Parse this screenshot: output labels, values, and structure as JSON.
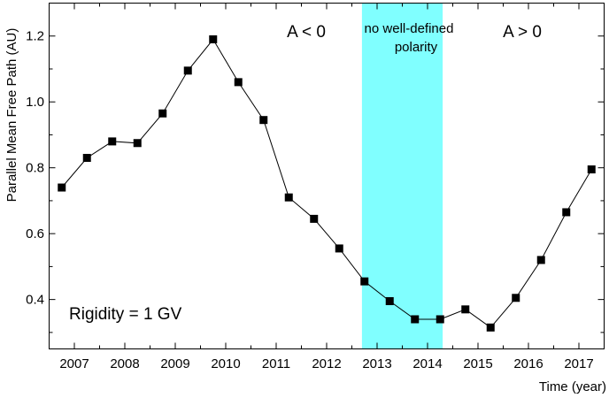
{
  "chart_data": {
    "type": "line",
    "title": "",
    "xlabel": "Time (year)",
    "ylabel": "Parallel Mean Free Path (AU)",
    "xlim": [
      2006.5,
      2017.5
    ],
    "ylim": [
      0.25,
      1.3
    ],
    "x_ticks": [
      2007,
      2008,
      2009,
      2010,
      2011,
      2012,
      2013,
      2014,
      2015,
      2016,
      2017
    ],
    "x_tick_labels": [
      "2007",
      "2008",
      "2009",
      "2010",
      "2011",
      "2012",
      "2013",
      "2014",
      "2015",
      "2016",
      "2017"
    ],
    "y_ticks": [
      0.4,
      0.6,
      0.8,
      1.0,
      1.2
    ],
    "y_tick_labels": [
      "0.4",
      "0.6",
      "0.8",
      "1.0",
      "1.2"
    ],
    "grid": false,
    "series": [
      {
        "name": "Rigidity = 1 GV",
        "marker": "square",
        "color": "#000000",
        "x": [
          2006.75,
          2007.25,
          2007.75,
          2008.25,
          2008.75,
          2009.25,
          2009.75,
          2010.25,
          2010.75,
          2011.25,
          2011.75,
          2012.25,
          2012.75,
          2013.25,
          2013.75,
          2014.25,
          2014.75,
          2015.25,
          2015.75,
          2016.25,
          2016.75,
          2017.25
        ],
        "values": [
          0.74,
          0.83,
          0.88,
          0.875,
          0.965,
          1.095,
          1.19,
          1.06,
          0.945,
          0.71,
          0.645,
          0.555,
          0.455,
          0.395,
          0.34,
          0.34,
          0.37,
          0.315,
          0.405,
          0.52,
          0.665,
          0.795
        ]
      }
    ],
    "shaded_region": {
      "x_range": [
        2012.7,
        2014.3
      ],
      "color": "#80ffff",
      "label_lines": [
        "no well-defined",
        "polarity"
      ]
    },
    "annotations": [
      "A < 0",
      "A > 0",
      "Rigidity = 1 GV"
    ]
  }
}
